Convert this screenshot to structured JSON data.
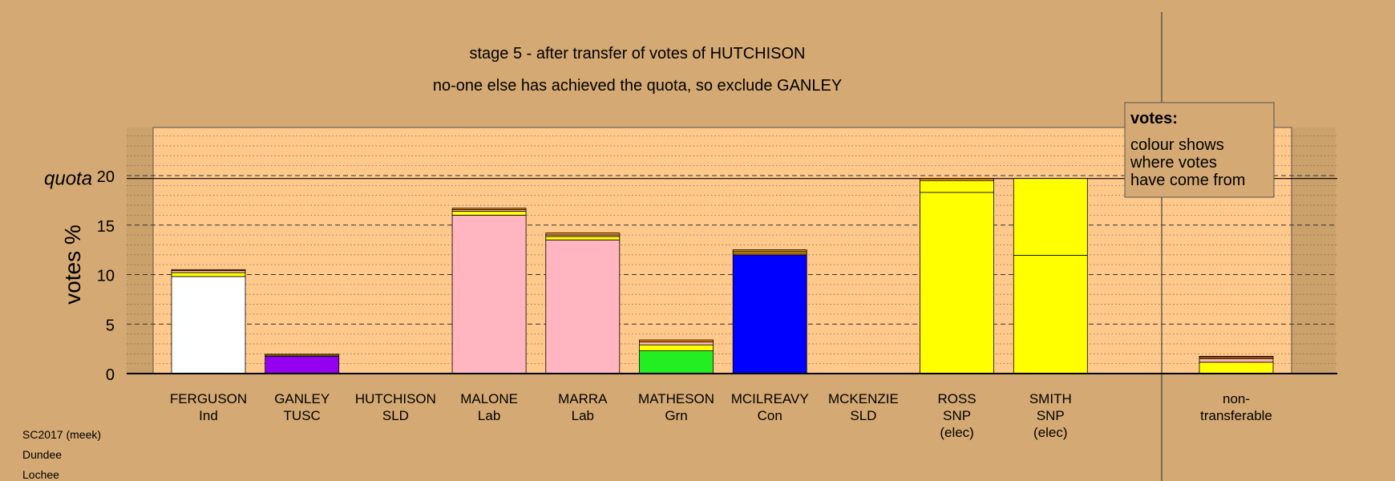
{
  "chart_data": {
    "type": "bar",
    "title": "stage 5 - after transfer of votes of HUTCHISON",
    "subtitle": "no-one else has achieved the quota, so exclude GANLEY",
    "ylabel": "votes %",
    "quota_label": "quota",
    "quota": 19.7,
    "ylim": [
      0,
      25
    ],
    "yticks": [
      0,
      5,
      10,
      15,
      20
    ],
    "grid": true,
    "legend": {
      "title": "votes:",
      "lines": [
        "colour shows",
        "where votes",
        "have come from"
      ],
      "placement": "top-right"
    },
    "categories": [
      {
        "name": "FERGUSON",
        "party": "Ind",
        "status": ""
      },
      {
        "name": "GANLEY",
        "party": "TUSC",
        "status": ""
      },
      {
        "name": "HUTCHISON",
        "party": "SLD",
        "status": ""
      },
      {
        "name": "MALONE",
        "party": "Lab",
        "status": ""
      },
      {
        "name": "MARRA",
        "party": "Lab",
        "status": ""
      },
      {
        "name": "MATHESON",
        "party": "Grn",
        "status": ""
      },
      {
        "name": "MCILREAVY",
        "party": "Con",
        "status": ""
      },
      {
        "name": "MCKENZIE",
        "party": "SLD",
        "status": ""
      },
      {
        "name": "ROSS",
        "party": "SNP",
        "status": "(elec)"
      },
      {
        "name": "SMITH",
        "party": "SNP",
        "status": "(elec)"
      }
    ],
    "nontransferable_label": [
      "non-",
      "transferable"
    ],
    "bars": [
      {
        "segments": [
          {
            "value": 9.8,
            "color": "#ffffff"
          },
          {
            "value": 0.4,
            "color": "#ffff00"
          },
          {
            "value": 0.2,
            "color": "#ffb6c1"
          },
          {
            "value": 0.1,
            "color": "#ff8c00"
          }
        ]
      },
      {
        "segments": [
          {
            "value": 1.75,
            "color": "#9400f0"
          },
          {
            "value": 0.1,
            "color": "#ffff00"
          },
          {
            "value": 0.1,
            "color": "#ff8c00"
          }
        ]
      },
      {
        "segments": []
      },
      {
        "segments": [
          {
            "value": 16.0,
            "color": "#ffb6c1"
          },
          {
            "value": 0.4,
            "color": "#ffff00"
          },
          {
            "value": 0.15,
            "color": "#ffb6c1"
          },
          {
            "value": 0.15,
            "color": "#ff8c00"
          }
        ]
      },
      {
        "segments": [
          {
            "value": 13.5,
            "color": "#ffb6c1"
          },
          {
            "value": 0.35,
            "color": "#ffff00"
          },
          {
            "value": 0.15,
            "color": "#ffb6c1"
          },
          {
            "value": 0.2,
            "color": "#ff8c00"
          }
        ]
      },
      {
        "segments": [
          {
            "value": 2.3,
            "color": "#22ee22"
          },
          {
            "value": 0.6,
            "color": "#ffff00"
          },
          {
            "value": 0.3,
            "color": "#ffb6c1"
          },
          {
            "value": 0.2,
            "color": "#ff8c00"
          }
        ]
      },
      {
        "segments": [
          {
            "value": 12.0,
            "color": "#0000ff"
          },
          {
            "value": 0.2,
            "color": "#ff8c00"
          },
          {
            "value": 0.15,
            "color": "#ffff00"
          },
          {
            "value": 0.15,
            "color": "#ff8c00"
          }
        ]
      },
      {
        "segments": []
      },
      {
        "segments": [
          {
            "value": 18.3,
            "color": "#ffff00"
          },
          {
            "value": 1.2,
            "color": "#ffff00"
          },
          {
            "value": 0.2,
            "color": "#ff8c00"
          }
        ]
      },
      {
        "segments": [
          {
            "value": 11.95,
            "color": "#ffff00"
          },
          {
            "value": 7.75,
            "color": "#ffff00"
          }
        ]
      }
    ],
    "nontransferable": {
      "segments": [
        {
          "value": 1.15,
          "color": "#ffff00"
        },
        {
          "value": 0.35,
          "color": "#ffb6c1"
        },
        {
          "value": 0.15,
          "color": "#ff8c00"
        },
        {
          "value": 0.1,
          "color": "#ff8c00"
        }
      ]
    }
  },
  "footer": {
    "line1": "SC2017 (meek)",
    "line2": "Dundee",
    "line3": "Lochee"
  },
  "colors": {
    "background": "#d4a973",
    "plot_background": "#ffc98c",
    "border_stripe": "#caa06b"
  }
}
